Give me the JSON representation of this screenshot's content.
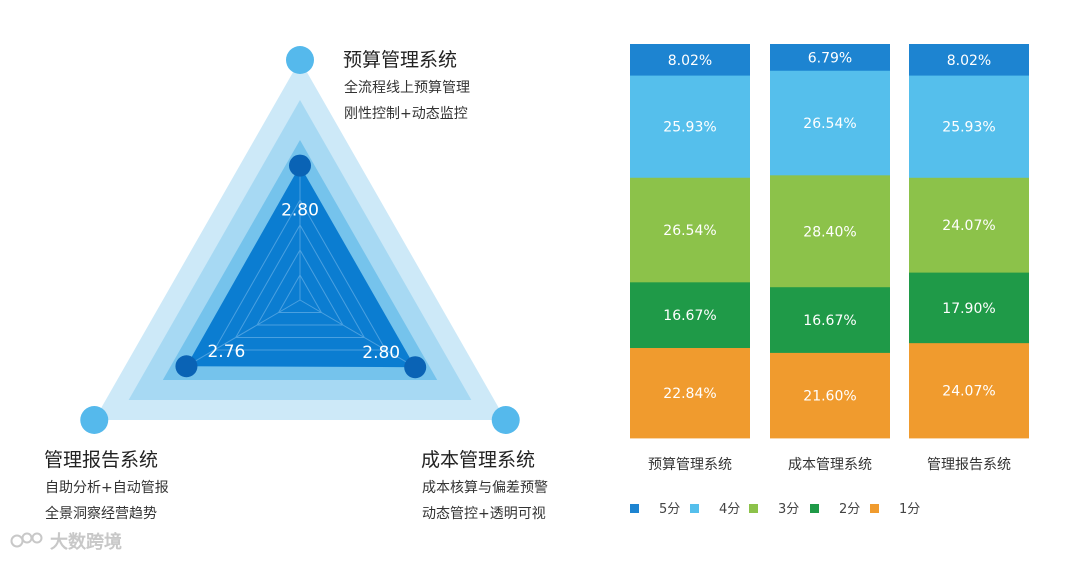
{
  "chart_data": [
    {
      "type": "radar",
      "axes": [
        {
          "name": "预算管理系统",
          "lines": [
            "全流程线上预算管理",
            "刚性控制+动态监控"
          ],
          "value": 2.8
        },
        {
          "name": "成本管理系统",
          "lines": [
            "成本核算与偏差预警",
            "动态管控+透明可视"
          ],
          "value": 2.8
        },
        {
          "name": "管理报告系统",
          "lines": [
            "自助分析+自动管报",
            "全景洞察经营趋势"
          ],
          "value": 2.76
        }
      ],
      "value_labels": [
        "2.80",
        "2.80",
        "2.76"
      ],
      "rmax": 5,
      "colors": {
        "band_outer": "#cde9f8",
        "band_mid": "#a7d9f3",
        "band_inner": "#75c3ec",
        "polygon": "#0b7dd1",
        "dot": "#0a63b5",
        "vertex": "#55b9ec",
        "grid": "#4aa0e0"
      }
    },
    {
      "type": "bar",
      "stacked": true,
      "percent": true,
      "categories": [
        "预算管理系统",
        "成本管理系统",
        "管理报告系统"
      ],
      "series": [
        {
          "name": "5分",
          "color": "#1d84d1",
          "values": [
            8.02,
            6.79,
            8.02
          ],
          "labels": [
            "8.02%",
            "6.79%",
            "8.02%"
          ]
        },
        {
          "name": "4分",
          "color": "#55bfec",
          "values": [
            25.93,
            26.54,
            25.93
          ],
          "labels": [
            "25.93%",
            "26.54%",
            "25.93%"
          ]
        },
        {
          "name": "3分",
          "color": "#8cc24a",
          "values": [
            26.54,
            28.4,
            24.07
          ],
          "labels": [
            "26.54%",
            "28.40%",
            "24.07%"
          ]
        },
        {
          "name": "2分",
          "color": "#1f9a48",
          "values": [
            16.67,
            16.67,
            17.9
          ],
          "labels": [
            "16.67%",
            "16.67%",
            "17.90%"
          ]
        },
        {
          "name": "1分",
          "color": "#f09b2e",
          "values": [
            22.84,
            21.6,
            24.07
          ],
          "labels": [
            "22.84%",
            "21.60%",
            "24.07%"
          ]
        }
      ],
      "legend_position": "bottom"
    }
  ],
  "watermark": "大数跨境"
}
